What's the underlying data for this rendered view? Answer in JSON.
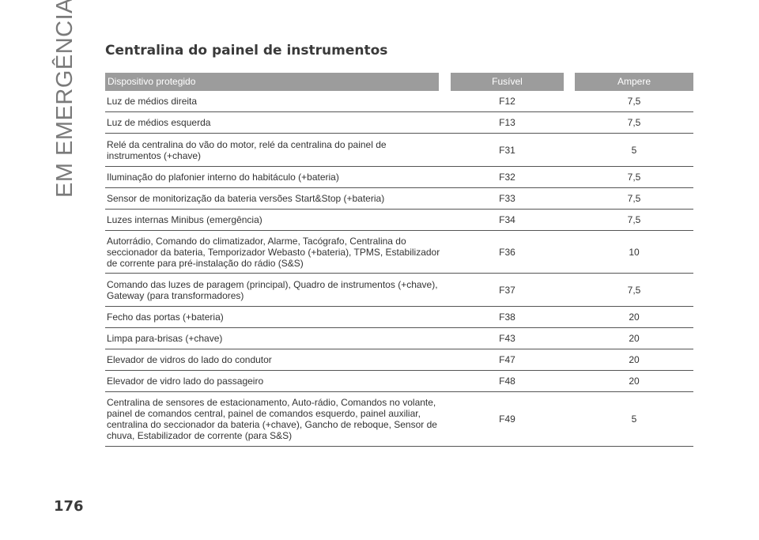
{
  "side_title": "EM EMERGÊNCIA",
  "section_title": "Centralina do painel de instrumentos",
  "table": {
    "headers": {
      "device": "Dispositivo protegido",
      "fuse": "Fusível",
      "ampere": "Ampere"
    },
    "rows": [
      {
        "device": "Luz de médios direita",
        "fuse": "F12",
        "ampere": "7,5"
      },
      {
        "device": "Luz de médios esquerda",
        "fuse": "F13",
        "ampere": "7,5"
      },
      {
        "device": "Relé da centralina do vão do motor, relé da centralina do painel de instrumentos (+chave)",
        "fuse": "F31",
        "ampere": "5"
      },
      {
        "device": "Iluminação do plafonier interno do habitáculo (+bateria)",
        "fuse": "F32",
        "ampere": "7,5"
      },
      {
        "device": "Sensor de monitorização da bateria versões Start&Stop (+bateria)",
        "fuse": "F33",
        "ampere": "7,5"
      },
      {
        "device": "Luzes internas Minibus (emergência)",
        "fuse": "F34",
        "ampere": "7,5"
      },
      {
        "device": "Autorrádio, Comando do climatizador, Alarme, Tacógrafo, Centralina do seccionador da bateria, Temporizador Webasto (+bateria), TPMS, Estabilizador de corrente para pré-instalação do rádio (S&S)",
        "fuse": "F36",
        "ampere": "10"
      },
      {
        "device": "Comando das luzes de paragem (principal), Quadro de instrumentos (+chave), Gateway (para transformadores)",
        "fuse": "F37",
        "ampere": "7,5"
      },
      {
        "device": "Fecho das portas (+bateria)",
        "fuse": "F38",
        "ampere": "20"
      },
      {
        "device": "Limpa para-brisas (+chave)",
        "fuse": "F43",
        "ampere": "20"
      },
      {
        "device": "Elevador de vidros do lado do condutor",
        "fuse": "F47",
        "ampere": "20"
      },
      {
        "device": "Elevador de vidro lado do passageiro",
        "fuse": "F48",
        "ampere": "20"
      },
      {
        "device": "Centralina de sensores de estacionamento, Auto-rádio, Comandos no volante, painel de comandos central, painel de comandos esquerdo, painel auxiliar, centralina do seccionador da bateria (+chave), Gancho de reboque, Sensor de chuva, Estabilizador de corrente (para S&S)",
        "fuse": "F49",
        "ampere": "5"
      }
    ]
  },
  "page_number": "176"
}
